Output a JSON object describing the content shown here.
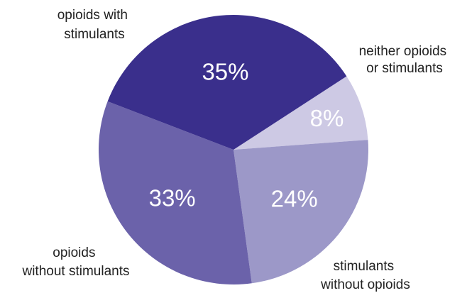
{
  "chart_data": {
    "type": "pie",
    "start_angle_deg": 57,
    "direction": "clockwise",
    "slices": [
      {
        "label": [
          "neither opioids",
          "or stimulants"
        ],
        "value": 8,
        "value_label": "8%",
        "color": "#cdc9e4"
      },
      {
        "label": [
          "stimulants",
          "without opioids"
        ],
        "value": 24,
        "value_label": "24%",
        "color": "#9c98c8"
      },
      {
        "label": [
          "opioids",
          "without stimulants"
        ],
        "value": 33,
        "value_label": "33%",
        "color": "#6b62aa"
      },
      {
        "label": [
          "opioids with",
          "stimulants"
        ],
        "value": 35,
        "value_label": "35%",
        "color": "#3a2f8c"
      }
    ]
  }
}
